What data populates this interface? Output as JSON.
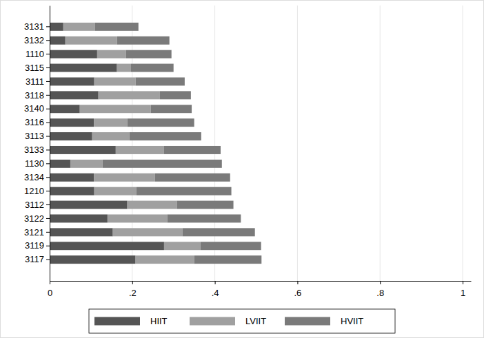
{
  "chart_data": {
    "type": "bar",
    "orientation": "horizontal",
    "stacked": true,
    "grid": true,
    "legend": "bottom",
    "categories": [
      "3131",
      "3132",
      "1110",
      "3115",
      "3111",
      "3118",
      "3140",
      "3116",
      "3113",
      "3133",
      "1130",
      "3134",
      "1210",
      "3112",
      "3122",
      "3121",
      "3119",
      "3117"
    ],
    "series": [
      {
        "name": "HIIT",
        "color": "#555555",
        "values": [
          0.033,
          0.038,
          0.115,
          0.163,
          0.108,
          0.118,
          0.073,
          0.107,
          0.103,
          0.16,
          0.05,
          0.107,
          0.108,
          0.188,
          0.14,
          0.153,
          0.277,
          0.208
        ]
      },
      {
        "name": "LVIIT",
        "color": "#a0a0a0",
        "values": [
          0.077,
          0.125,
          0.07,
          0.034,
          0.1,
          0.149,
          0.172,
          0.081,
          0.09,
          0.117,
          0.078,
          0.148,
          0.102,
          0.12,
          0.145,
          0.169,
          0.088,
          0.142
        ]
      },
      {
        "name": "HVIIT",
        "color": "#7a7a7a",
        "values": [
          0.105,
          0.127,
          0.11,
          0.103,
          0.119,
          0.075,
          0.099,
          0.162,
          0.174,
          0.137,
          0.289,
          0.182,
          0.23,
          0.137,
          0.178,
          0.175,
          0.147,
          0.163
        ]
      }
    ],
    "xlim": [
      0,
      1.02
    ],
    "xticks": [
      0,
      {
        "value": 0.2,
        "label": ".2"
      },
      {
        "value": 0.4,
        "label": ".4"
      },
      {
        "value": 0.6,
        "label": ".6"
      },
      {
        "value": 0.8,
        "label": ".8"
      },
      1
    ]
  }
}
